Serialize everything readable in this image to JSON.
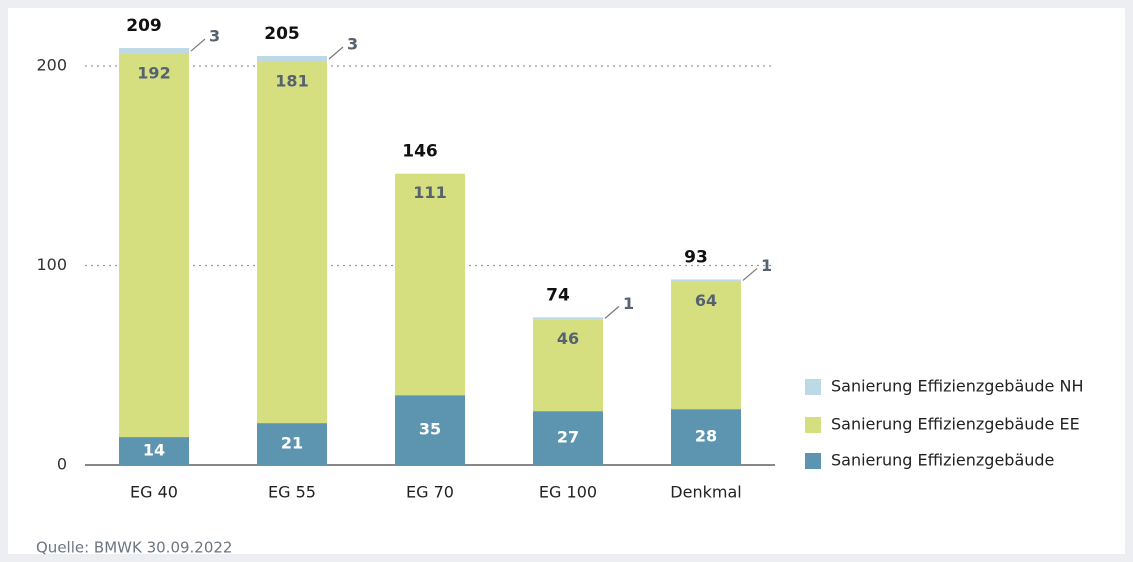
{
  "chart_data": {
    "type": "stacked_bar",
    "categories": [
      "EG 40",
      "EG 55",
      "EG 70",
      "EG 100",
      "Denkmal"
    ],
    "series": [
      {
        "name": "Sanierung Effizienzgebäude",
        "color": "#5d95b1",
        "values": [
          14,
          21,
          35,
          27,
          28
        ]
      },
      {
        "name": "Sanierung Effizienzgebäude EE",
        "color": "#d5df80",
        "values": [
          192,
          181,
          111,
          46,
          64
        ]
      },
      {
        "name": "Sanierung Effizienzgebäude NH",
        "color": "#bdd8e7",
        "values": [
          3,
          3,
          null,
          1,
          1
        ]
      }
    ],
    "totals": [
      209,
      205,
      146,
      74,
      93
    ],
    "ylim": [
      0,
      200
    ],
    "yticks": [
      0,
      100,
      200
    ],
    "grid": true,
    "legend": "right",
    "source": "Quelle: BMWK 30.09.2022"
  }
}
